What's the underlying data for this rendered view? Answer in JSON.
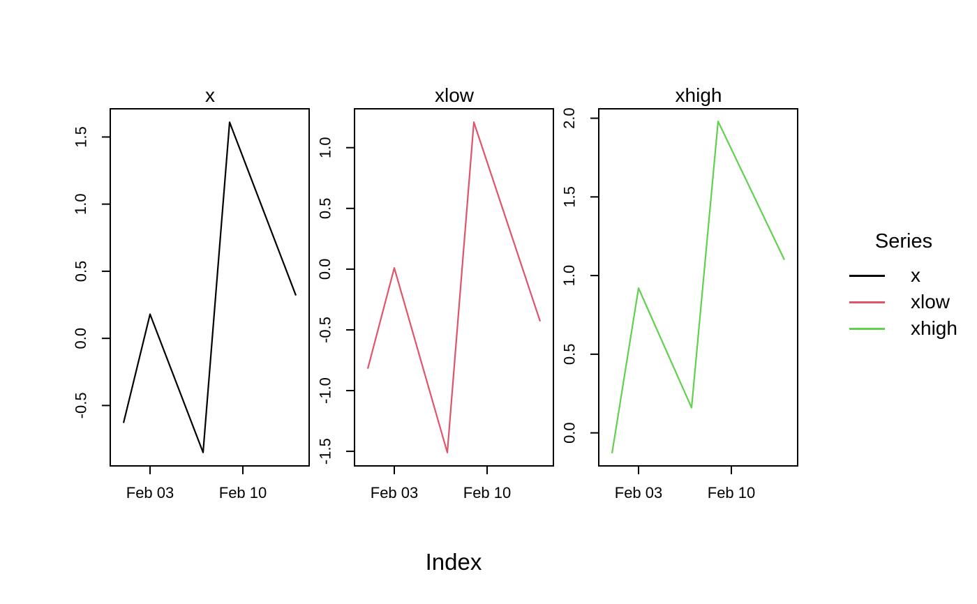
{
  "figure": {
    "background": "#ffffff",
    "foreground": "#000000",
    "xlabel": "Index"
  },
  "legend": {
    "title": "Series",
    "entries": [
      {
        "label": "x",
        "color": "#000000"
      },
      {
        "label": "xlow",
        "color": "#df536b"
      },
      {
        "label": "xhigh",
        "color": "#61d04f"
      }
    ]
  },
  "chart_data": {
    "type": "line",
    "layout": "three side-by-side panels, shared x axis, legend at right",
    "grid": false,
    "xlabel": "Index",
    "x_point_dates": [
      "Feb 01",
      "Feb 03",
      "Feb 07",
      "Feb 09",
      "Feb 14"
    ],
    "x_days": [
      1,
      3,
      7,
      9,
      14
    ],
    "x_ticks": [
      {
        "day": 3,
        "label": "Feb 03"
      },
      {
        "day": 10,
        "label": "Feb 10"
      }
    ],
    "xlim_days": [
      0,
      15
    ],
    "panels": [
      {
        "title": "x",
        "color": "#000000",
        "values": [
          -0.63,
          0.18,
          -0.85,
          1.61,
          0.32
        ],
        "y_ticks": [
          -0.5,
          0.0,
          0.5,
          1.0,
          1.5
        ],
        "ylim": [
          -0.95,
          1.71
        ]
      },
      {
        "title": "xlow",
        "color": "#df536b",
        "values": [
          -0.82,
          0.01,
          -1.51,
          1.21,
          -0.43
        ],
        "y_ticks": [
          -1.5,
          -1.0,
          -0.5,
          0.0,
          0.5,
          1.0
        ],
        "ylim": [
          -1.62,
          1.32
        ]
      },
      {
        "title": "xhigh",
        "color": "#61d04f",
        "values": [
          -0.13,
          0.92,
          0.16,
          1.98,
          1.1
        ],
        "y_ticks": [
          0.0,
          0.5,
          1.0,
          1.5,
          2.0
        ],
        "ylim": [
          -0.21,
          2.06
        ]
      }
    ]
  }
}
